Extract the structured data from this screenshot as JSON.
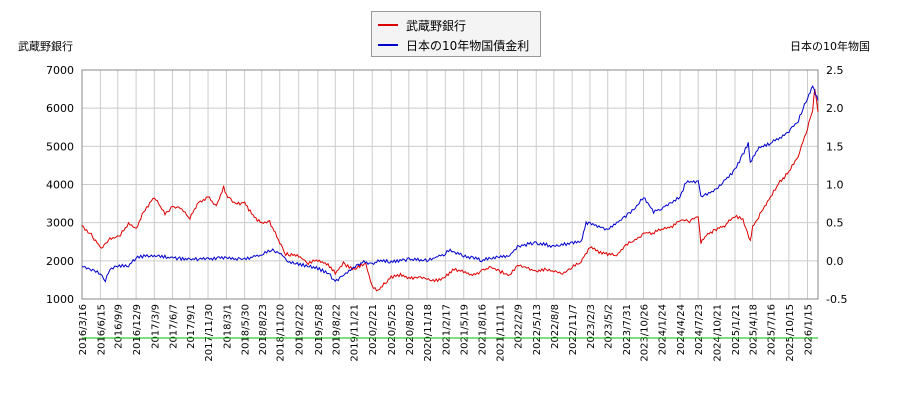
{
  "chart_data": {
    "type": "line",
    "left_axis_title": "武蔵野銀行",
    "right_axis_title": "日本の10年物国",
    "legend": [
      "武蔵野銀行",
      "日本の10年物国債金利"
    ],
    "left_axis": {
      "ylim": [
        1000,
        7000
      ],
      "ticks": [
        1000,
        2000,
        3000,
        4000,
        5000,
        6000,
        7000
      ]
    },
    "right_axis": {
      "ylim": [
        -0.5,
        2.5
      ],
      "ticks": [
        "-0.5",
        "0.0",
        "0.5",
        "1.0",
        "1.5",
        "2.0",
        "2.5"
      ]
    },
    "x_range": [
      "2016-03-16",
      "2026-03-08"
    ],
    "x_ticks": [
      "2016/3/16",
      "2016/6/15",
      "2016/9/9",
      "2016/12/9",
      "2017/3/9",
      "2017/6/7",
      "2017/9/1",
      "2017/11/30",
      "2018/3/1",
      "2018/5/30",
      "2018/8/23",
      "2018/11/20",
      "2019/2/22",
      "2019/5/28",
      "2019/8/22",
      "2019/11/21",
      "2020/2/21",
      "2020/5/25",
      "2020/8/20",
      "2020/11/18",
      "2021/2/17",
      "2021/5/19",
      "2021/8/16",
      "2021/11/11",
      "2022/2/9",
      "2022/5/13",
      "2022/8/8",
      "2022/11/7",
      "2023/2/3",
      "2023/5/2",
      "2023/7/31",
      "2023/10/26",
      "2024/1/24",
      "2024/4/24",
      "2024/7/23",
      "2024/10/21",
      "2025/1/21",
      "2025/4/18",
      "2025/7/16",
      "2025/10/15",
      "2026/1/15"
    ],
    "grid": true,
    "colors": {
      "bank": "#dd0000",
      "jgb": "#0000cc",
      "baseline": "#00bb00"
    },
    "series": [
      {
        "name": "武蔵野銀行",
        "axis": "left",
        "x": [
          "2016-03-16",
          "2016-05-01",
          "2016-06-20",
          "2016-08-01",
          "2016-09-15",
          "2016-11-01",
          "2016-12-10",
          "2017-01-15",
          "2017-03-09",
          "2017-05-01",
          "2017-06-07",
          "2017-07-15",
          "2017-09-01",
          "2017-10-15",
          "2017-11-30",
          "2018-01-10",
          "2018-02-15",
          "2018-03-01",
          "2018-04-15",
          "2018-05-30",
          "2018-07-10",
          "2018-08-23",
          "2018-10-01",
          "2018-11-20",
          "2018-12-20",
          "2019-02-22",
          "2019-04-10",
          "2019-05-28",
          "2019-07-10",
          "2019-08-22",
          "2019-10-01",
          "2019-11-21",
          "2020-01-20",
          "2020-02-21",
          "2020-03-20",
          "2020-05-25",
          "2020-07-10",
          "2020-08-20",
          "2020-10-01",
          "2020-11-18",
          "2021-01-10",
          "2021-02-17",
          "2021-04-01",
          "2021-05-19",
          "2021-07-01",
          "2021-08-16",
          "2021-10-01",
          "2021-11-11",
          "2022-01-01",
          "2022-02-09",
          "2022-03-20",
          "2022-05-13",
          "2022-07-01",
          "2022-08-08",
          "2022-09-20",
          "2022-11-07",
          "2022-12-20",
          "2023-02-03",
          "2023-03-20",
          "2023-05-02",
          "2023-06-15",
          "2023-07-31",
          "2023-09-15",
          "2023-10-26",
          "2023-12-10",
          "2024-01-24",
          "2024-03-10",
          "2024-04-24",
          "2024-06-10",
          "2024-07-23",
          "2024-08-05",
          "2024-09-01",
          "2024-10-21",
          "2024-12-01",
          "2025-01-21",
          "2025-03-01",
          "2025-04-07",
          "2025-04-18",
          "2025-06-01",
          "2025-07-16",
          "2025-09-01",
          "2025-10-15",
          "2025-12-01",
          "2026-01-15",
          "2026-02-10",
          "2026-02-20",
          "2026-03-08"
        ],
        "values": [
          2950,
          2700,
          2350,
          2600,
          2650,
          3000,
          2850,
          3300,
          3700,
          3250,
          3450,
          3400,
          3150,
          3550,
          3700,
          3450,
          3950,
          3750,
          3500,
          3550,
          3200,
          3000,
          3050,
          2500,
          2200,
          2150,
          1950,
          2050,
          1950,
          1700,
          1950,
          1800,
          1950,
          1350,
          1250,
          1600,
          1650,
          1550,
          1600,
          1550,
          1500,
          1600,
          1800,
          1750,
          1650,
          1750,
          1850,
          1750,
          1650,
          1900,
          1850,
          1750,
          1800,
          1750,
          1700,
          1850,
          2000,
          2400,
          2250,
          2200,
          2150,
          2450,
          2550,
          2750,
          2750,
          2850,
          2900,
          3100,
          3050,
          3200,
          2500,
          2700,
          2850,
          2950,
          3200,
          3100,
          2550,
          2900,
          3300,
          3700,
          4100,
          4350,
          4800,
          5500,
          6000,
          6550,
          5900
        ]
      },
      {
        "name": "日本の10年物国債金利",
        "axis": "right",
        "x": [
          "2016-03-16",
          "2016-05-01",
          "2016-06-15",
          "2016-07-10",
          "2016-08-01",
          "2016-09-09",
          "2016-11-01",
          "2016-12-09",
          "2017-02-01",
          "2017-03-09",
          "2017-06-07",
          "2017-09-01",
          "2017-11-30",
          "2018-03-01",
          "2018-05-30",
          "2018-08-23",
          "2018-10-10",
          "2018-11-20",
          "2019-01-01",
          "2019-02-22",
          "2019-05-28",
          "2019-07-20",
          "2019-08-22",
          "2019-09-20",
          "2019-11-21",
          "2020-01-10",
          "2020-02-21",
          "2020-03-20",
          "2020-05-25",
          "2020-08-20",
          "2020-11-18",
          "2021-02-17",
          "2021-03-05",
          "2021-05-19",
          "2021-08-16",
          "2021-11-11",
          "2022-01-01",
          "2022-02-09",
          "2022-05-13",
          "2022-08-08",
          "2022-11-07",
          "2022-12-20",
          "2023-01-15",
          "2023-02-03",
          "2023-05-02",
          "2023-07-31",
          "2023-09-15",
          "2023-10-26",
          "2023-12-15",
          "2024-01-24",
          "2024-04-24",
          "2024-05-25",
          "2024-07-23",
          "2024-08-05",
          "2024-10-21",
          "2025-01-21",
          "2025-03-28",
          "2025-04-07",
          "2025-05-20",
          "2025-07-16",
          "2025-10-15",
          "2025-12-01",
          "2026-01-15",
          "2026-02-10",
          "2026-03-08"
        ],
        "values": [
          -0.05,
          -0.1,
          -0.15,
          -0.25,
          -0.1,
          -0.05,
          -0.05,
          0.05,
          0.08,
          0.08,
          0.05,
          0.03,
          0.04,
          0.05,
          0.03,
          0.1,
          0.15,
          0.12,
          0.0,
          -0.03,
          -0.09,
          -0.15,
          -0.27,
          -0.2,
          -0.08,
          0.0,
          -0.04,
          0.02,
          0.0,
          0.03,
          0.02,
          0.1,
          0.15,
          0.08,
          0.02,
          0.07,
          0.08,
          0.2,
          0.25,
          0.2,
          0.25,
          0.25,
          0.5,
          0.5,
          0.42,
          0.6,
          0.7,
          0.85,
          0.65,
          0.7,
          0.85,
          1.05,
          1.05,
          0.85,
          0.95,
          1.2,
          1.55,
          1.3,
          1.5,
          1.55,
          1.7,
          1.85,
          2.15,
          2.3,
          2.1
        ]
      }
    ]
  }
}
